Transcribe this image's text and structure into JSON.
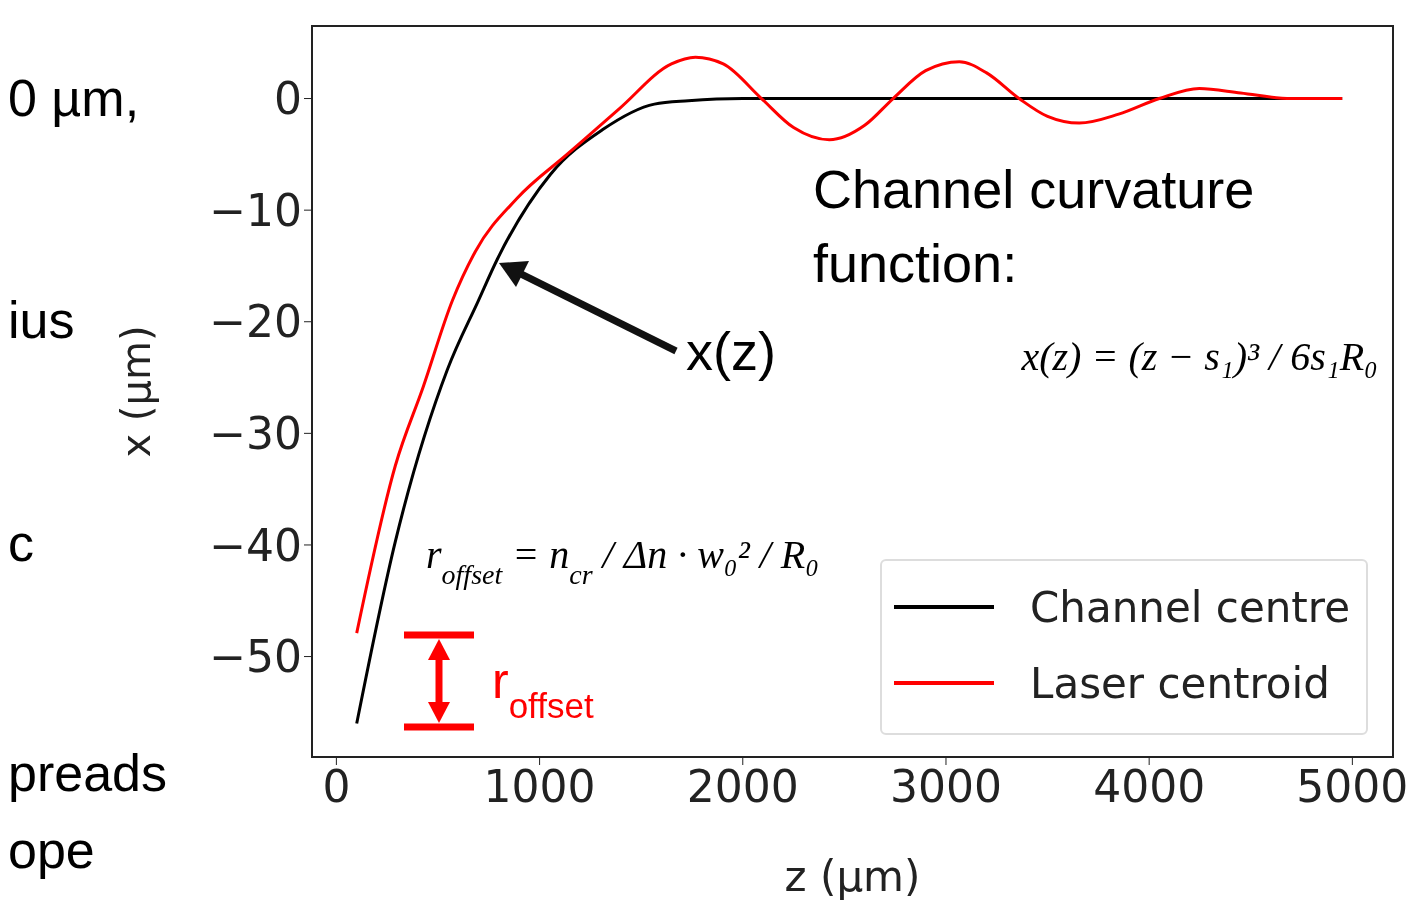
{
  "chart_data": {
    "type": "line",
    "xlabel": "z (μm)",
    "ylabel": "x (μm)",
    "xlim": [
      -120,
      5200
    ],
    "ylim": [
      -59,
      6.5
    ],
    "xticks": [
      0,
      1000,
      2000,
      3000,
      4000,
      5000
    ],
    "yticks": [
      -50,
      -40,
      -30,
      -20,
      -10,
      0
    ],
    "legend": "bottom right",
    "series": [
      {
        "name": "Channel centre",
        "color": "#000000",
        "x": [
          100,
          290,
          546,
          699,
          792,
          1053,
          1309,
          1565,
          1732,
          2000,
          3000,
          4000,
          4950
        ],
        "values": [
          -56,
          -39.7,
          -24.3,
          -18.1,
          -14.4,
          -6.8,
          -2.8,
          -0.5,
          -0.2,
          0,
          0,
          0,
          0
        ]
      },
      {
        "name": "Laser centroid",
        "color": "#ff0000",
        "x": [
          100,
          290,
          428,
          571,
          684,
          886,
          1142,
          1393,
          1649,
          1767,
          1904,
          2092,
          2250,
          2426,
          2600,
          2740,
          2900,
          3066,
          3200,
          3360,
          3500,
          3656,
          3850,
          4050,
          4247,
          4450,
          4700,
          4950
        ],
        "values": [
          -47.9,
          -32.9,
          -25.8,
          -18.1,
          -13.7,
          -9,
          -4.9,
          -0.9,
          3.1,
          3.7,
          3.1,
          0,
          -2.6,
          -3.7,
          -2.4,
          0,
          2.5,
          3.3,
          2.3,
          0,
          -1.6,
          -2.2,
          -1.4,
          0,
          0.9,
          0.5,
          0,
          0
        ]
      }
    ],
    "annotations": [
      "Channel curvature function:",
      "x(z) = (z − s₁)³ / 6s₁R₀",
      "x(z)",
      "r$_{offset}$ = n$_{cr}$ / Δn · w₀² / R₀",
      "r$_{offset}$",
      "0 µm,",
      "ius",
      "c",
      "preads",
      "ope"
    ]
  }
}
